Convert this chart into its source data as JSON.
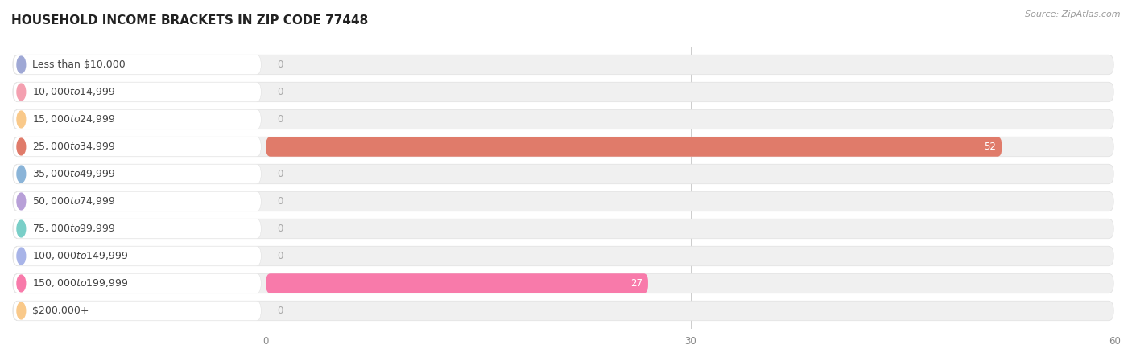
{
  "title": "HOUSEHOLD INCOME BRACKETS IN ZIP CODE 77448",
  "source": "Source: ZipAtlas.com",
  "categories": [
    "Less than $10,000",
    "$10,000 to $14,999",
    "$15,000 to $24,999",
    "$25,000 to $34,999",
    "$35,000 to $49,999",
    "$50,000 to $74,999",
    "$75,000 to $99,999",
    "$100,000 to $149,999",
    "$150,000 to $199,999",
    "$200,000+"
  ],
  "values": [
    0,
    0,
    0,
    52,
    0,
    0,
    0,
    0,
    27,
    0
  ],
  "bar_colors": [
    "#9fa8d5",
    "#f4a0b0",
    "#f9c98a",
    "#e07b6a",
    "#8ab4d8",
    "#b8a0d8",
    "#7acfc8",
    "#a8b4e8",
    "#f87aaa",
    "#f9c98a"
  ],
  "xlim_max": 60,
  "xticks": [
    0,
    30,
    60
  ],
  "background_color": "#ffffff",
  "bar_bg_color": "#f0f0f0",
  "title_fontsize": 11,
  "label_fontsize": 9,
  "value_fontsize": 8.5,
  "source_fontsize": 8
}
